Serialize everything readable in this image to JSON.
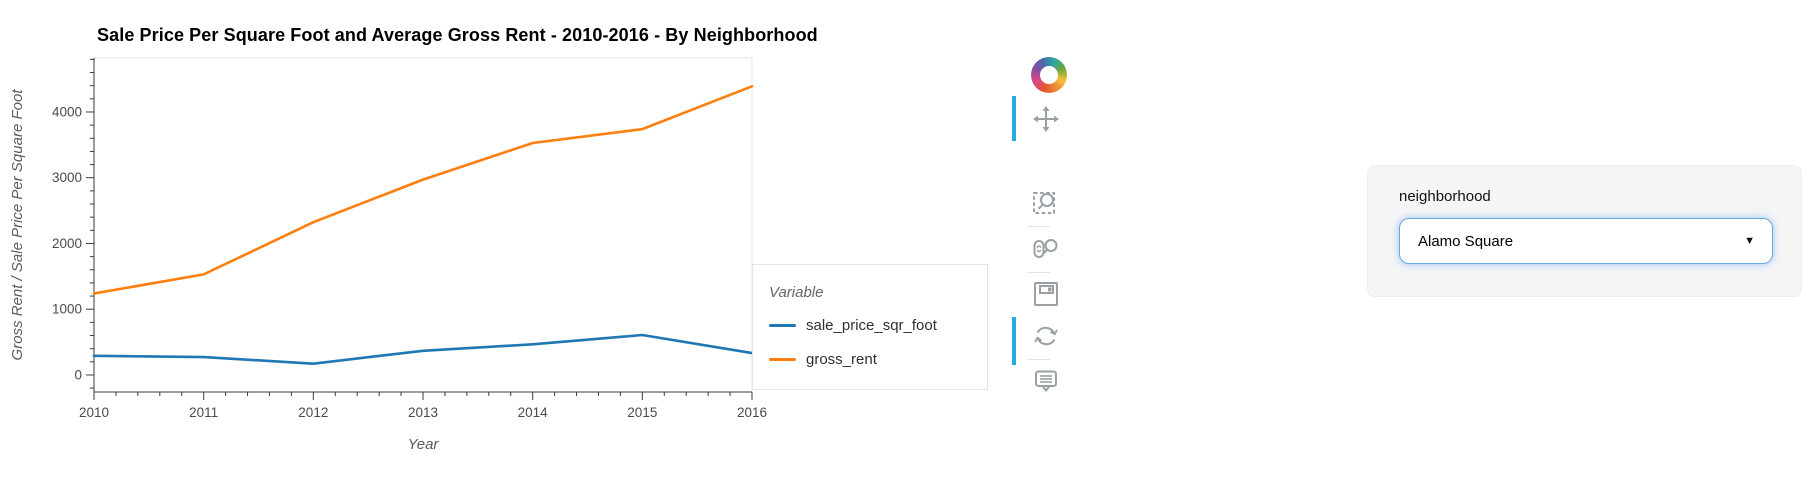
{
  "chart": {
    "title": "Sale Price Per Square Foot and Average Gross Rent - 2010-2016 - By Neighborhood"
  },
  "chart_data": {
    "type": "line",
    "x": [
      2010,
      2011,
      2012,
      2013,
      2014,
      2015,
      2016
    ],
    "series": [
      {
        "name": "sale_price_sqr_foot",
        "color": "#1f77b4",
        "values": [
          291,
          273,
          171,
          368,
          466,
          608,
          333
        ]
      },
      {
        "name": "gross_rent",
        "color": "#ff7f0e",
        "values": [
          1239,
          1530,
          2324,
          2971,
          3528,
          3739,
          4390
        ]
      }
    ],
    "title": "Sale Price Per Square Foot and Average Gross Rent - 2010-2016 - By Neighborhood",
    "xlabel": "Year",
    "ylabel": "Gross Rent / Sale Price Per Square Foot",
    "xlim": [
      2010,
      2016
    ],
    "ylim": [
      -259,
      4821
    ],
    "xticks": [
      2010,
      2011,
      2012,
      2013,
      2014,
      2015,
      2016
    ],
    "yticks": [
      0,
      1000,
      2000,
      3000,
      4000
    ],
    "x_minor_step": 0.2,
    "y_minor_step": 200,
    "grid": false,
    "legend_position": "right"
  },
  "legend": {
    "title": "Variable",
    "entries": [
      {
        "label": "sale_price_sqr_foot",
        "color": "#1f77b4"
      },
      {
        "label": "gross_rent",
        "color": "#ff7f0e"
      }
    ]
  },
  "toolbar": {
    "logo": "bokeh-logo",
    "tools": [
      {
        "name": "pan",
        "active": true
      },
      {
        "name": "box-zoom",
        "active": false
      },
      {
        "name": "wheel-zoom",
        "active": false
      },
      {
        "name": "save",
        "active": false
      },
      {
        "name": "reset",
        "active": false
      },
      {
        "name": "hover",
        "active": true
      }
    ]
  },
  "widget": {
    "label": "neighborhood",
    "value": "Alamo Square"
  },
  "colors": {
    "accent_blue": "#26aae1",
    "series_blue": "#1f77b4",
    "series_orange": "#ff7f0e",
    "frame_outline": "#e5e5e5"
  }
}
